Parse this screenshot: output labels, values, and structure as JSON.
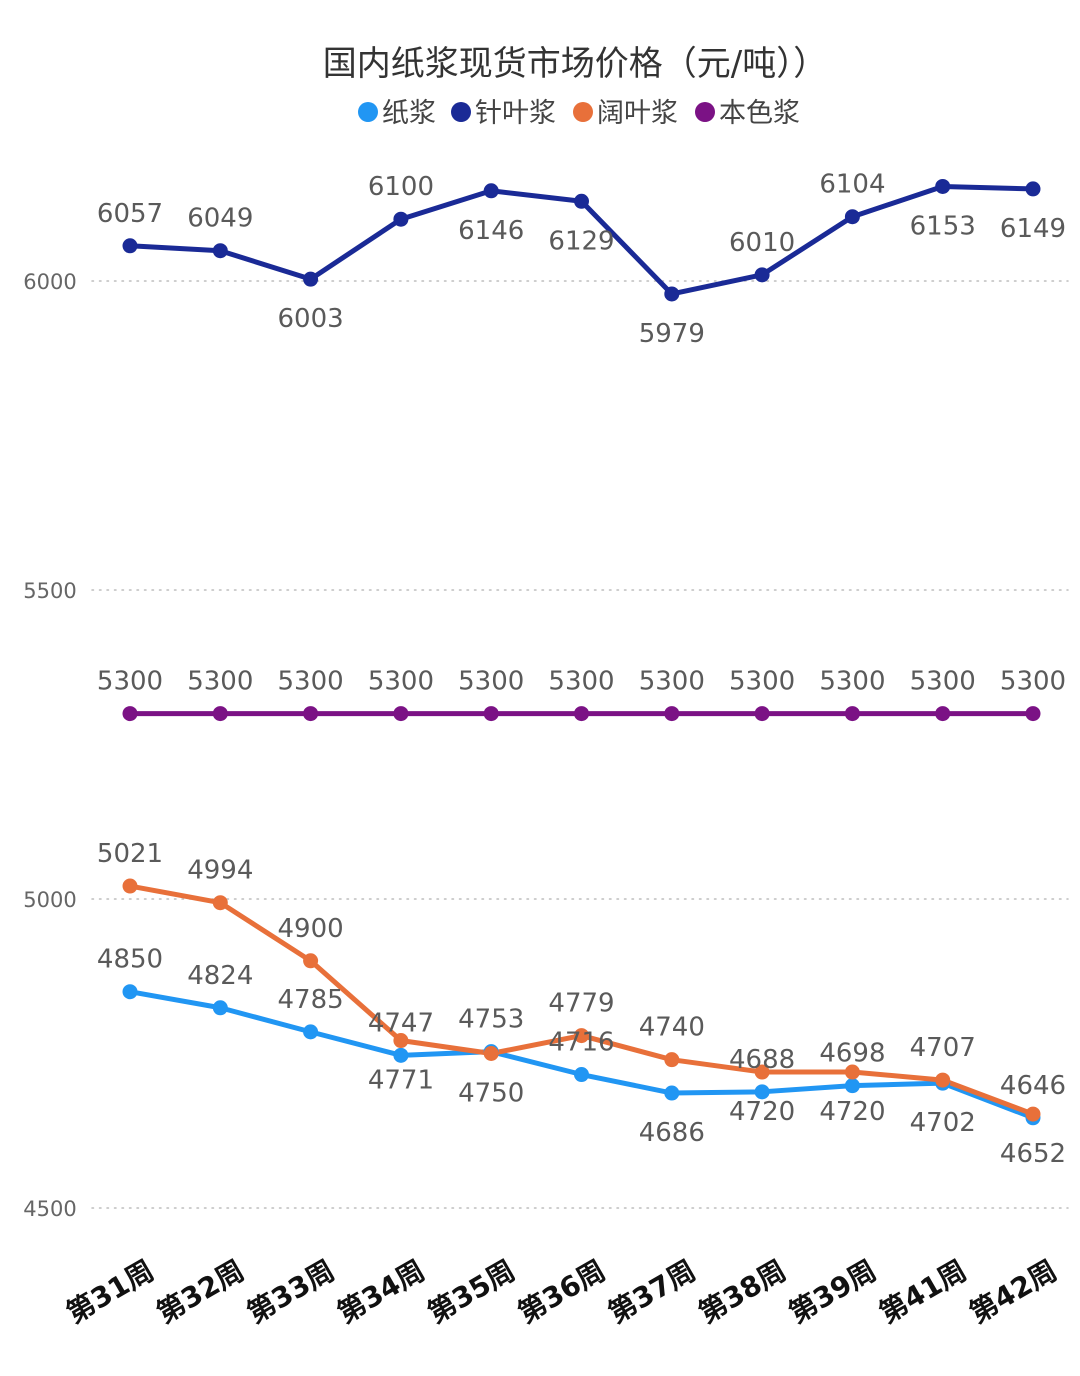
{
  "chart_data": {
    "type": "line",
    "title": "国内纸浆现货市场价格（元/吨））",
    "xlabel": "",
    "ylabel": "",
    "categories": [
      "第31周",
      "第32周",
      "第33周",
      "第34周",
      "第35周",
      "第36周",
      "第37周",
      "第38周",
      "第39周",
      "第41周",
      "第42周"
    ],
    "ylim": [
      4500,
      6000
    ],
    "yticks": [
      6000,
      5500,
      5000,
      4500
    ],
    "grid": true,
    "legend_position": "top",
    "series": [
      {
        "name": "纸浆",
        "color": "#2196F3",
        "values": [
          4850,
          4824,
          4785,
          4747,
          4753,
          4716,
          4686,
          4688,
          4698,
          4702,
          4646
        ]
      },
      {
        "name": "针叶浆",
        "color": "#1A2A96",
        "values": [
          6057,
          6049,
          6003,
          6100,
          6146,
          6129,
          5979,
          6010,
          6104,
          6153,
          6149
        ]
      },
      {
        "name": "阔叶浆",
        "color": "#E8703A",
        "values": [
          5021,
          4994,
          4900,
          4771,
          4750,
          4779,
          4740,
          4720,
          4720,
          4707,
          4652
        ]
      },
      {
        "name": "本色浆",
        "color": "#7B1285",
        "values": [
          5300,
          5300,
          5300,
          5300,
          5300,
          5300,
          5300,
          5300,
          5300,
          5300,
          5300
        ]
      }
    ]
  }
}
